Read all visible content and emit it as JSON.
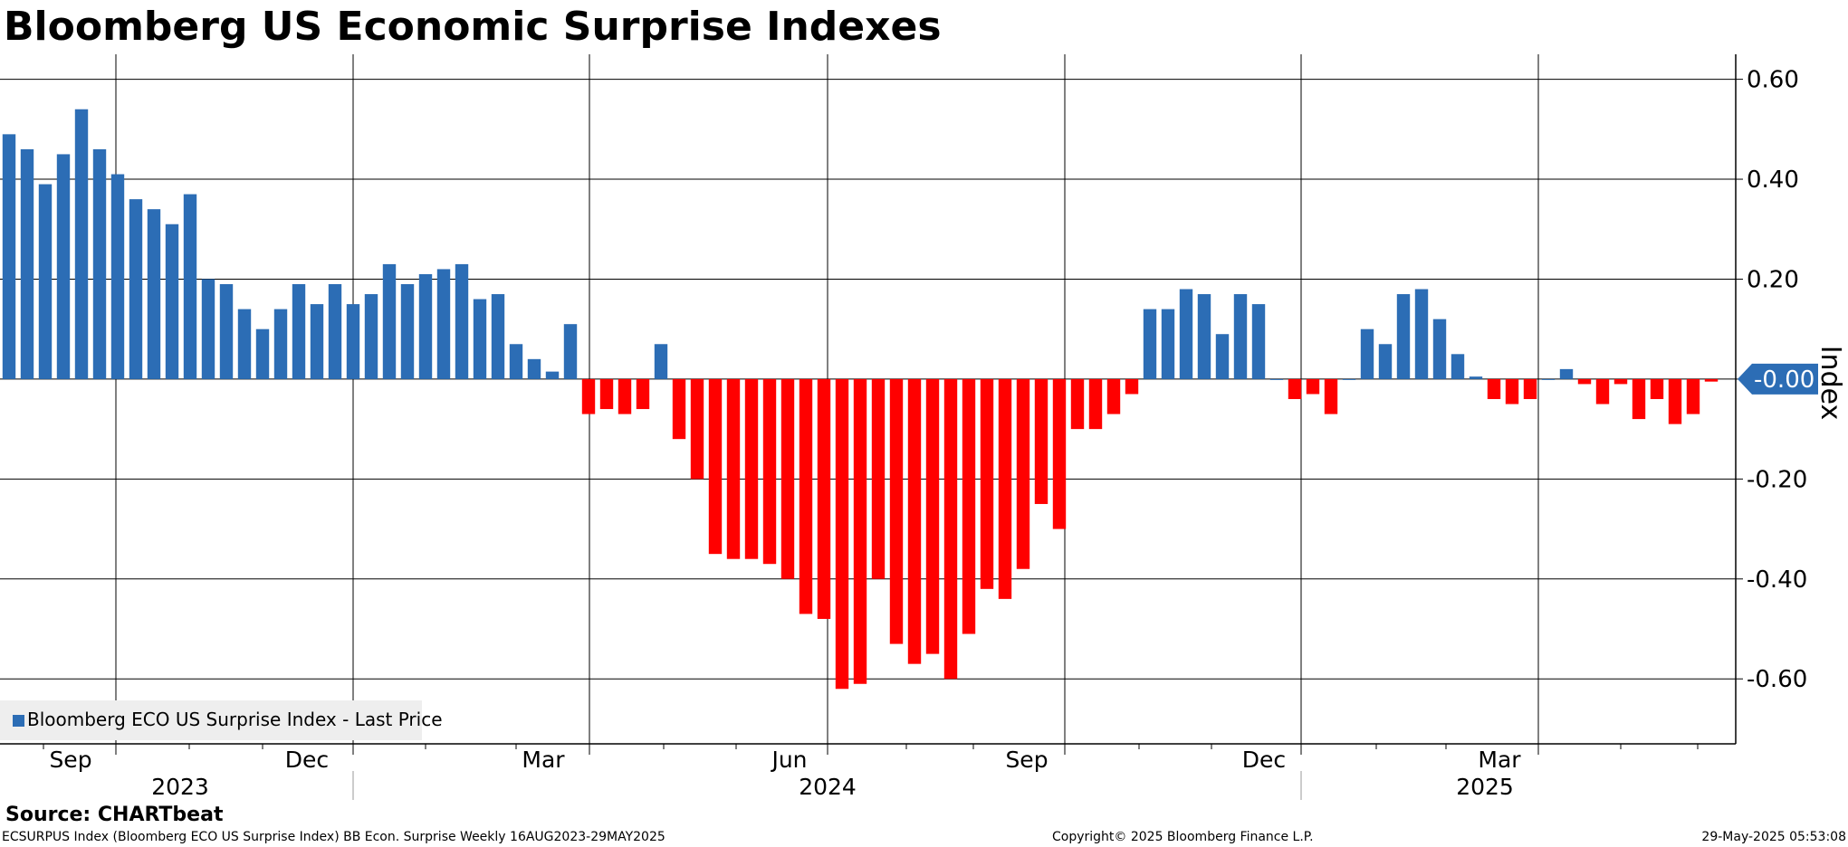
{
  "title": "Bloomberg US Economic Surprise Indexes",
  "legend": {
    "label": "Bloomberg ECO US Surprise Index - Last Price"
  },
  "last_value_badge": "-0.00",
  "source": "Source: CHARTbeat",
  "footer": {
    "left": "ECSURPUS Index (Bloomberg ECO US Surprise Index) BB Econ. Surprise  Weekly 16AUG2023-29MAY2025",
    "middle": "Copyright© 2025 Bloomberg Finance L.P.",
    "right": "29-May-2025 05:53:08"
  },
  "colors": {
    "positive": "#2c6db5",
    "negative": "#ff0000",
    "badge": "#2c6db5"
  },
  "chart_data": {
    "type": "bar",
    "ylabel": "Index",
    "ylim": [
      -0.73,
      0.65
    ],
    "yticks": [
      "0.60",
      "0.40",
      "0.20",
      "-0.00",
      "-0.20",
      "-0.40",
      "-0.60"
    ],
    "month_labels": [
      "Sep",
      "Dec",
      "Mar",
      "Jun",
      "Sep",
      "Dec",
      "Mar"
    ],
    "year_labels": [
      "2023",
      "2024",
      "2025"
    ],
    "grid": true,
    "legend_position": "bottom-left",
    "values": [
      0.49,
      0.46,
      0.39,
      0.45,
      0.54,
      0.46,
      0.41,
      0.36,
      0.34,
      0.31,
      0.37,
      0.2,
      0.19,
      0.14,
      0.1,
      0.14,
      0.19,
      0.15,
      0.19,
      0.15,
      0.17,
      0.23,
      0.19,
      0.21,
      0.22,
      0.23,
      0.16,
      0.17,
      0.07,
      0.04,
      0.015,
      0.11,
      -0.07,
      -0.06,
      -0.07,
      -0.06,
      0.07,
      -0.12,
      -0.2,
      -0.35,
      -0.36,
      -0.36,
      -0.37,
      -0.4,
      -0.47,
      -0.48,
      -0.62,
      -0.61,
      -0.4,
      -0.53,
      -0.57,
      -0.55,
      -0.6,
      -0.51,
      -0.42,
      -0.44,
      -0.38,
      -0.25,
      -0.3,
      -0.1,
      -0.1,
      -0.07,
      -0.03,
      0.14,
      0.14,
      0.18,
      0.17,
      0.09,
      0.17,
      0.15,
      0.0,
      -0.04,
      -0.03,
      -0.07,
      0.0,
      0.1,
      0.07,
      0.17,
      0.18,
      0.12,
      0.05,
      0.005,
      -0.04,
      -0.05,
      -0.04,
      0.0,
      0.02,
      -0.01,
      -0.05,
      -0.01,
      -0.08,
      -0.04,
      -0.09,
      -0.07,
      -0.005
    ]
  }
}
